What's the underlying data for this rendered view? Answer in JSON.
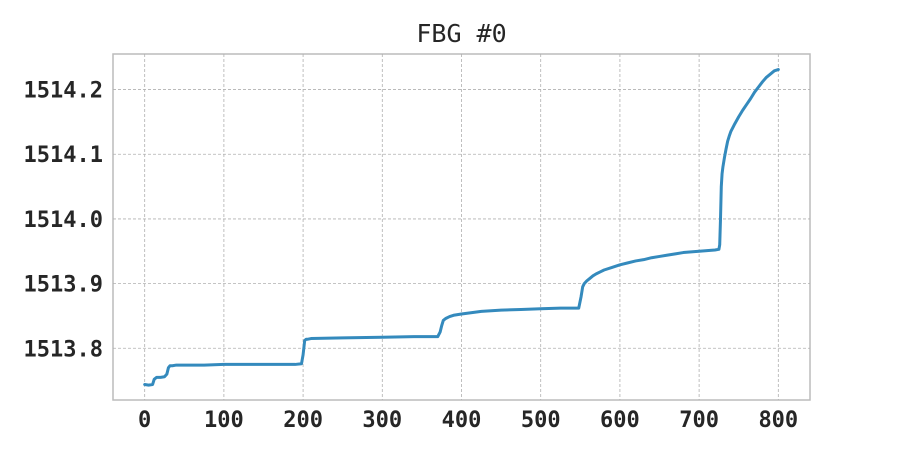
{
  "chart_data": {
    "type": "line",
    "title": "FBG #0",
    "xlabel": "",
    "ylabel": "",
    "xlim": [
      -40,
      840
    ],
    "ylim": [
      1513.72,
      1514.255
    ],
    "xticks": [
      0,
      100,
      200,
      300,
      400,
      500,
      600,
      700,
      800
    ],
    "xtick_labels": [
      "0",
      "100",
      "200",
      "300",
      "400",
      "500",
      "600",
      "700",
      "800"
    ],
    "yticks": [
      1513.8,
      1513.9,
      1514.0,
      1514.1,
      1514.2
    ],
    "ytick_labels": [
      "1513.8",
      "1513.9",
      "1514.0",
      "1514.1",
      "1514.2"
    ],
    "grid": true,
    "series": [
      {
        "color": "#348abd",
        "x": [
          0,
          5,
          10,
          12,
          15,
          20,
          25,
          28,
          30,
          32,
          35,
          40,
          50,
          75,
          100,
          125,
          150,
          175,
          190,
          198,
          200,
          202,
          204,
          206,
          210,
          250,
          300,
          340,
          370,
          373,
          375,
          377,
          380,
          385,
          390,
          400,
          425,
          450,
          475,
          500,
          525,
          548,
          551,
          553,
          555,
          558,
          562,
          566,
          570,
          575,
          580,
          590,
          600,
          610,
          620,
          630,
          640,
          650,
          660,
          670,
          680,
          690,
          700,
          710,
          720,
          725,
          726,
          727,
          728,
          729,
          730,
          732,
          734,
          736,
          738,
          740,
          745,
          750,
          755,
          760,
          765,
          770,
          775,
          780,
          785,
          790,
          795,
          800
        ],
        "y": [
          1513.744,
          1513.743,
          1513.744,
          1513.752,
          1513.755,
          1513.755,
          1513.756,
          1513.76,
          1513.77,
          1513.773,
          1513.773,
          1513.774,
          1513.774,
          1513.774,
          1513.775,
          1513.775,
          1513.775,
          1513.775,
          1513.775,
          1513.776,
          1513.79,
          1513.812,
          1513.814,
          1513.814,
          1513.815,
          1513.816,
          1513.817,
          1513.818,
          1513.818,
          1513.825,
          1513.835,
          1513.843,
          1513.846,
          1513.849,
          1513.851,
          1513.853,
          1513.857,
          1513.859,
          1513.86,
          1513.861,
          1513.862,
          1513.862,
          1513.88,
          1513.895,
          1513.9,
          1513.904,
          1513.908,
          1513.912,
          1513.915,
          1513.918,
          1513.921,
          1513.925,
          1513.929,
          1513.932,
          1513.935,
          1513.937,
          1513.94,
          1513.942,
          1513.944,
          1513.946,
          1513.948,
          1513.949,
          1513.95,
          1513.951,
          1513.952,
          1513.953,
          1513.96,
          1514.0,
          1514.05,
          1514.07,
          1514.08,
          1514.095,
          1514.108,
          1514.12,
          1514.128,
          1514.135,
          1514.147,
          1514.158,
          1514.168,
          1514.177,
          1514.186,
          1514.196,
          1514.204,
          1514.212,
          1514.219,
          1514.224,
          1514.229,
          1514.231
        ]
      }
    ]
  }
}
